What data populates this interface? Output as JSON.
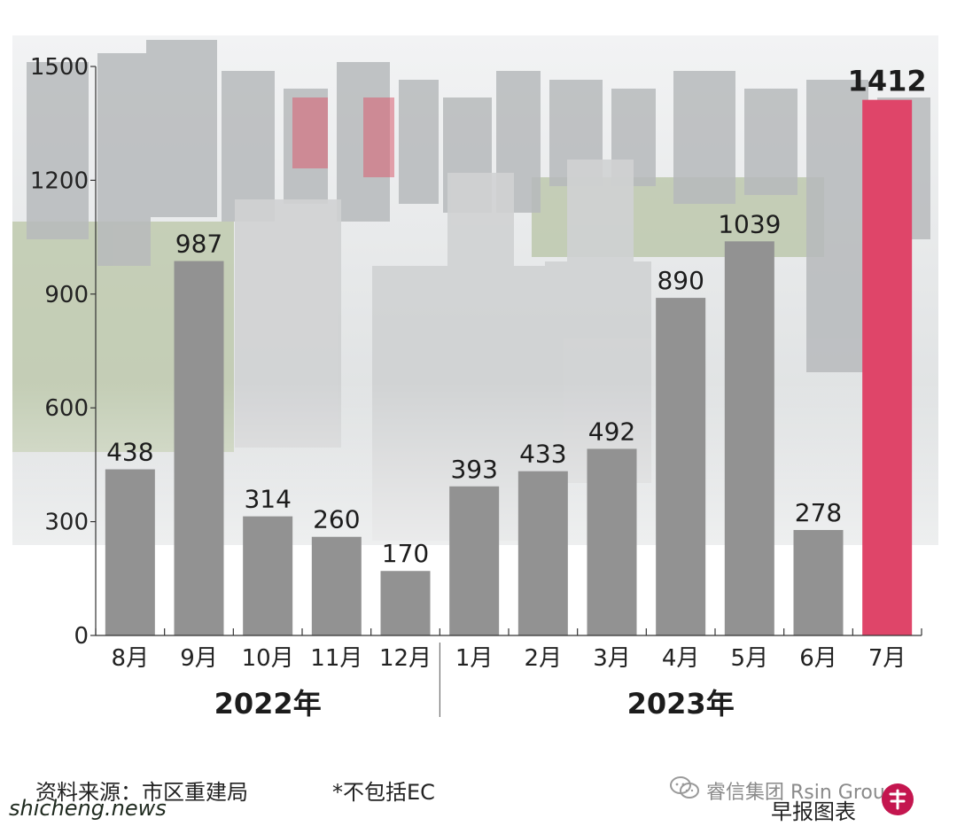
{
  "chart_data": {
    "type": "bar",
    "categories": [
      "8月",
      "9月",
      "10月",
      "11月",
      "12月",
      "1月",
      "2月",
      "3月",
      "4月",
      "5月",
      "6月",
      "7月"
    ],
    "values": [
      438,
      987,
      314,
      260,
      170,
      393,
      433,
      492,
      890,
      1039,
      278,
      1412
    ],
    "value_labels": [
      "438",
      "987",
      "314",
      "260",
      "170",
      "393",
      "433",
      "492",
      "890",
      "1039",
      "278",
      "1412"
    ],
    "ylim": [
      0,
      1500
    ],
    "yticks": [
      0,
      300,
      600,
      900,
      1200,
      1500
    ],
    "ytick_labels": [
      "0",
      "300",
      "600",
      "900",
      "1200",
      "1500"
    ],
    "year_groups": [
      {
        "label": "2022年",
        "from": 0,
        "to": 4
      },
      {
        "label": "2023年",
        "from": 5,
        "to": 11
      }
    ],
    "bar_color": "#929292",
    "highlight_color": "#df4569",
    "highlight_index": 11,
    "grid": false,
    "legend": "none"
  },
  "footer": {
    "source": "资料来源：市区重建局",
    "note": "*不包括EC",
    "wechat_account": "睿信集团 Rsin Group",
    "graphic_label": "早报图表",
    "watermark": "shicheng.news"
  },
  "colors": {
    "background_photo_sky": "#e7e9ea",
    "background_photo_buildings": "#b9bcbd",
    "background_photo_green": "#b8c4a4",
    "axis": "#333333",
    "text": "#222222"
  }
}
